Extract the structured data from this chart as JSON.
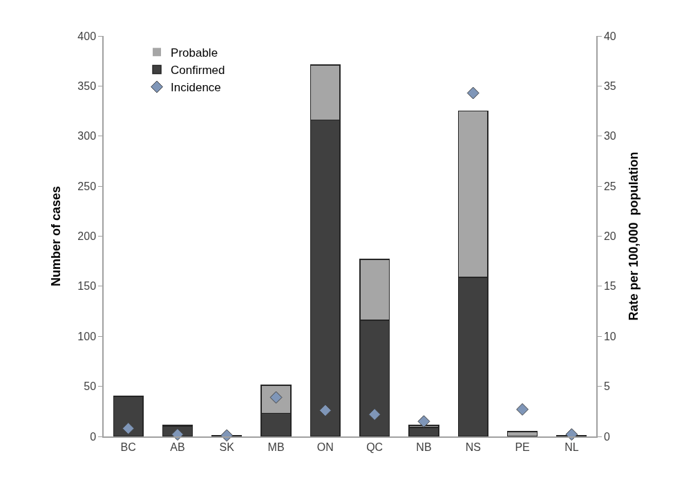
{
  "chart_data": {
    "type": "bar",
    "stacked": true,
    "xlabel": null,
    "ylabel": "Number of cases",
    "y2label": "Rate per 100,000  population",
    "categories": [
      "BC",
      "AB",
      "SK",
      "MB",
      "ON",
      "QC",
      "NB",
      "NS",
      "PE",
      "NL"
    ],
    "series": [
      {
        "name": "Confirmed",
        "color": "#404040",
        "values": [
          40,
          10,
          1,
          23,
          316,
          116,
          9,
          159,
          0,
          1
        ]
      },
      {
        "name": "Probable",
        "color": "#a6a6a6",
        "values": [
          0,
          1,
          0,
          28,
          55,
          61,
          2,
          166,
          5,
          0
        ]
      },
      {
        "name": "Incidence",
        "type": "scatter",
        "axis": "y2",
        "marker": "diamond",
        "color": "#7f96b8",
        "values": [
          0.8,
          0.2,
          0.1,
          3.9,
          2.6,
          2.2,
          1.5,
          34.3,
          2.7,
          0.2
        ]
      }
    ],
    "ylim": [
      0,
      400
    ],
    "yticks": [
      0,
      50,
      100,
      150,
      200,
      250,
      300,
      350,
      400
    ],
    "y2lim": [
      0,
      40
    ],
    "y2ticks": [
      0,
      5,
      10,
      15,
      20,
      25,
      30,
      35,
      40
    ],
    "grid": false,
    "legend": "top left"
  }
}
